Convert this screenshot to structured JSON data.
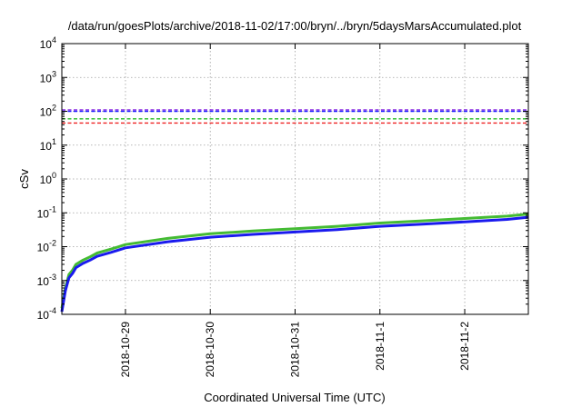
{
  "chart_data": {
    "type": "line",
    "title": "/data/run/goesPlots/archive/2018-11-02/17:00/bryn/../bryn/5daysMarsAccumulated.plot",
    "xlabel": "Coordinated Universal Time (UTC)",
    "ylabel": "cSv",
    "y_scale": "log",
    "xlim": [
      "2018-10-28T06:00",
      "2018-11-02T18:00"
    ],
    "ylim": [
      0.0001,
      10000
    ],
    "x_ticks": [
      "2018-10-29",
      "2018-10-30",
      "2018-10-31",
      "2018-11-1",
      "2018-11-2"
    ],
    "y_ticks": [
      {
        "base": "10",
        "exp": "-4",
        "value": 0.0001
      },
      {
        "base": "10",
        "exp": "-3",
        "value": 0.001
      },
      {
        "base": "10",
        "exp": "-2",
        "value": 0.01
      },
      {
        "base": "10",
        "exp": "-1",
        "value": 0.1
      },
      {
        "base": "10",
        "exp": "0",
        "value": 1
      },
      {
        "base": "10",
        "exp": "1",
        "value": 10
      },
      {
        "base": "10",
        "exp": "2",
        "value": 100
      },
      {
        "base": "10",
        "exp": "3",
        "value": 1000
      },
      {
        "base": "10",
        "exp": "4",
        "value": 10000
      }
    ],
    "grid": true,
    "reference_lines": [
      {
        "value": 110,
        "color": "#8a2be2"
      },
      {
        "value": 100,
        "color": "#1a1aff"
      },
      {
        "value": 60,
        "color": "#22bb22"
      },
      {
        "value": 45,
        "color": "#ee2222"
      }
    ],
    "series": [
      {
        "color": "#44bb33",
        "x": [
          "2018-10-28T06:00",
          "2018-10-28T07:00",
          "2018-10-28T08:00",
          "2018-10-28T09:00",
          "2018-10-28T10:00",
          "2018-10-28T12:00",
          "2018-10-28T14:00",
          "2018-10-28T16:00",
          "2018-10-28T20:00",
          "2018-10-29T00:00",
          "2018-10-29T12:00",
          "2018-10-30T00:00",
          "2018-10-30T12:00",
          "2018-10-31T00:00",
          "2018-10-31T12:00",
          "2018-11-01T00:00",
          "2018-11-01T12:00",
          "2018-11-02T00:00",
          "2018-11-02T12:00",
          "2018-11-02T18:00"
        ],
        "y": [
          0.00015,
          0.0006,
          0.0015,
          0.002,
          0.003,
          0.004,
          0.005,
          0.0065,
          0.0085,
          0.0115,
          0.0175,
          0.024,
          0.029,
          0.034,
          0.04,
          0.05,
          0.058,
          0.068,
          0.08,
          0.092
        ]
      },
      {
        "color": "#1a1aee",
        "x": [
          "2018-10-28T06:00",
          "2018-10-28T07:00",
          "2018-10-28T08:00",
          "2018-10-28T09:00",
          "2018-10-28T10:00",
          "2018-10-28T12:00",
          "2018-10-28T14:00",
          "2018-10-28T16:00",
          "2018-10-28T20:00",
          "2018-10-29T00:00",
          "2018-10-29T12:00",
          "2018-10-30T00:00",
          "2018-10-30T12:00",
          "2018-10-31T00:00",
          "2018-10-31T12:00",
          "2018-11-01T00:00",
          "2018-11-01T12:00",
          "2018-11-02T00:00",
          "2018-11-02T12:00",
          "2018-11-02T18:00"
        ],
        "y": [
          0.00012,
          0.0005,
          0.0012,
          0.0016,
          0.0024,
          0.0032,
          0.004,
          0.0052,
          0.0068,
          0.0092,
          0.014,
          0.019,
          0.023,
          0.027,
          0.032,
          0.04,
          0.046,
          0.054,
          0.064,
          0.074
        ]
      }
    ]
  }
}
